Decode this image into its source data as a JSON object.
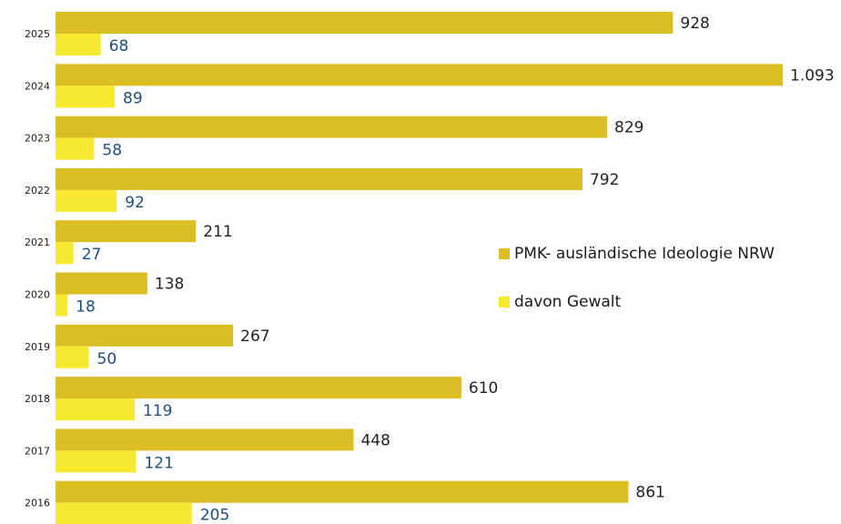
{
  "chart_data": {
    "type": "bar",
    "orientation": "horizontal",
    "categories": [
      "2025",
      "2024",
      "2023",
      "2022",
      "2021",
      "2020",
      "2019",
      "2018",
      "2017",
      "2016"
    ],
    "series": [
      {
        "name": "PMK- ausländische Ideologie NRW",
        "color": "#dbbd24",
        "values": [
          928,
          1093,
          829,
          792,
          211,
          138,
          267,
          610,
          448,
          861
        ],
        "labels": [
          "928",
          "1.093",
          "829",
          "792",
          "211",
          "138",
          "267",
          "610",
          "448",
          "861"
        ]
      },
      {
        "name": "davon Gewalt",
        "color": "#f7e92f",
        "values": [
          68,
          89,
          58,
          92,
          27,
          18,
          50,
          119,
          121,
          205
        ],
        "labels": [
          "68",
          "89",
          "58",
          "92",
          "27",
          "18",
          "50",
          "119",
          "121",
          "205"
        ]
      }
    ],
    "xlim": [
      0,
      1093
    ],
    "grid": false,
    "legend": "center-right"
  }
}
